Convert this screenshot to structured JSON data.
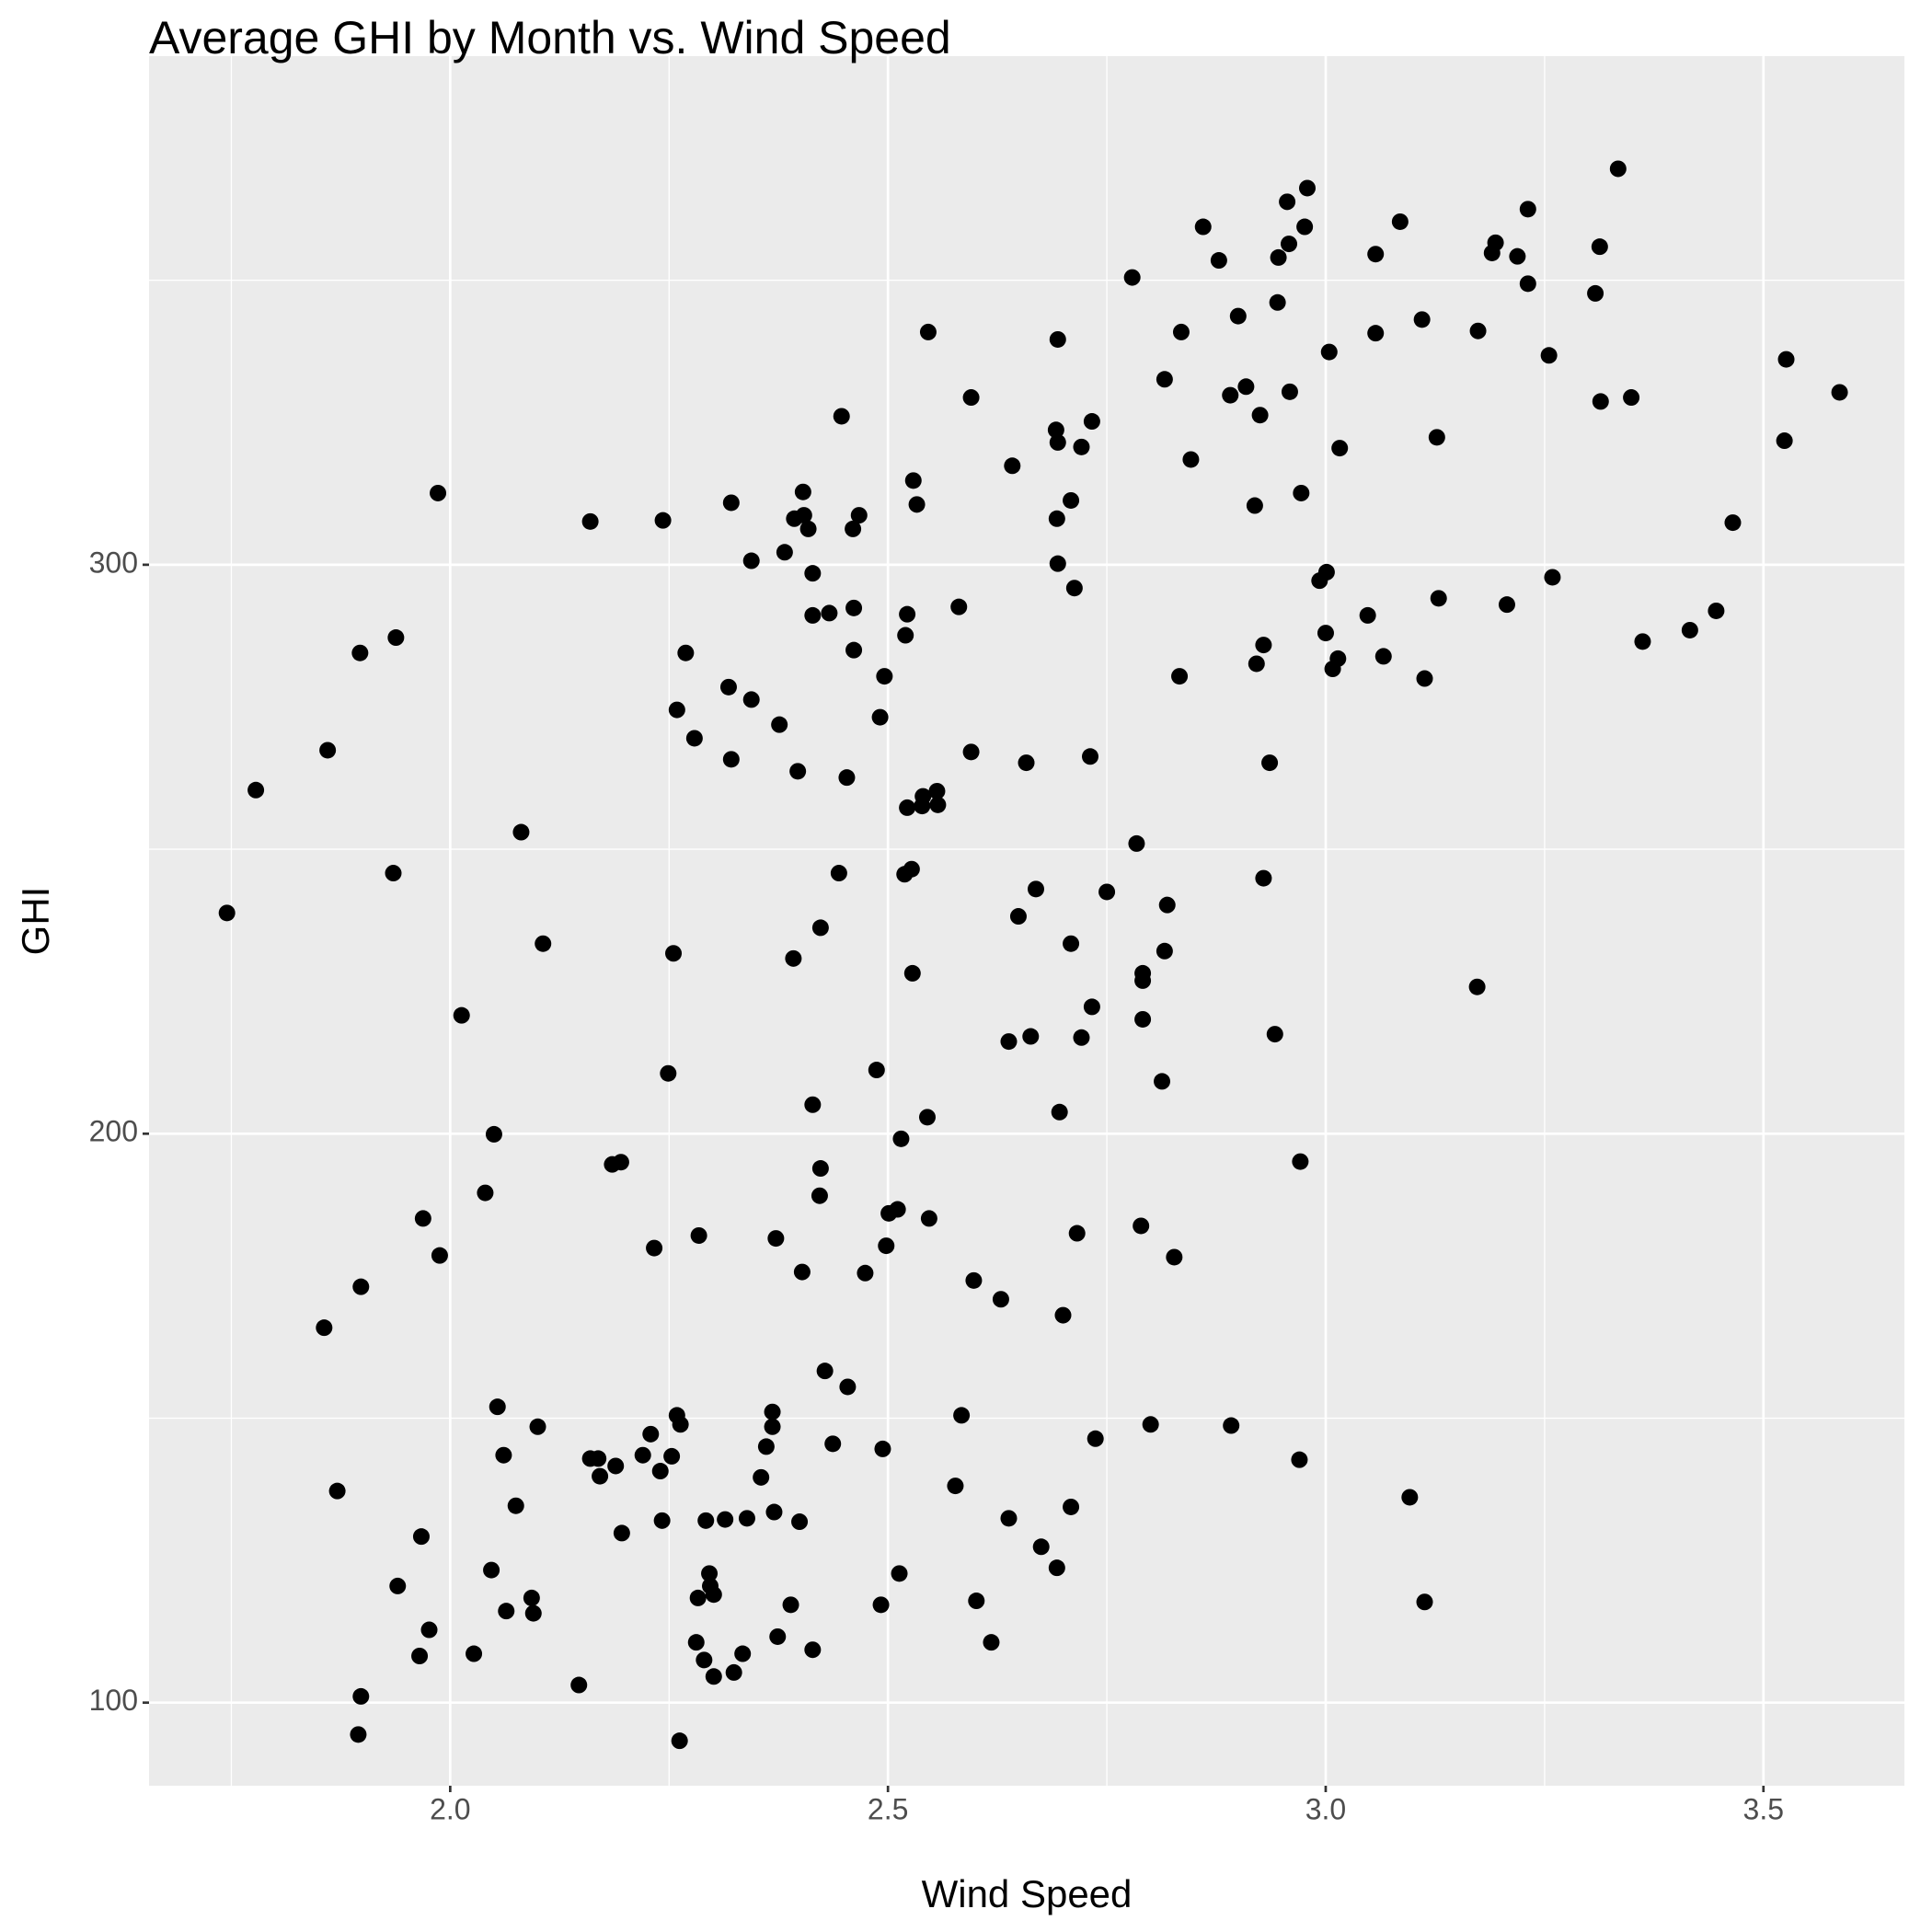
{
  "chart_data": {
    "type": "scatter",
    "title": "Average GHI by Month vs. Wind Speed",
    "x_label": "Wind Speed",
    "y_label": "GHI",
    "color": "#000000",
    "grid": true,
    "xlim": [
      1.656,
      3.661
    ],
    "ylim": [
      85.4,
      389.4
    ],
    "xticks": [
      {
        "value": 2,
        "label": "2.0"
      },
      {
        "value": 2.5,
        "label": "2.5"
      },
      {
        "value": 3,
        "label": "3.0"
      },
      {
        "value": 3.5,
        "label": "3.5"
      }
    ],
    "yticks": [
      100,
      200,
      300
    ],
    "xminor": [
      1.75,
      2.25,
      2.75,
      3.25
    ],
    "yminor": [
      150,
      250,
      350
    ],
    "x": [
      3.334,
      2.979,
      2.956,
      3.231,
      3.085,
      2.86,
      2.976,
      3.194,
      2.958,
      3.313,
      3.057,
      3.19,
      2.946,
      3.219,
      2.878,
      2.779,
      3.231,
      3.308,
      2.945,
      2.9,
      3.11,
      2.546,
      2.835,
      3.057,
      3.174,
      2.694,
      3.004,
      3.255,
      3.526,
      2.816,
      2.909,
      2.891,
      2.959,
      3.587,
      2.595,
      3.314,
      3.349,
      2.447,
      2.925,
      2.733,
      2.692,
      2.694,
      2.721,
      3.127,
      3.524,
      3.016,
      2.642,
      2.846,
      2.529,
      1.986,
      2.403,
      2.972,
      2.321,
      2.533,
      2.709,
      2.919,
      2.16,
      2.243,
      2.393,
      2.404,
      2.467,
      2.693,
      2.409,
      2.46,
      3.465,
      2.382,
      2.344,
      2.694,
      2.414,
      3.001,
      2.993,
      3.259,
      2.713,
      3.129,
      2.414,
      2.433,
      2.461,
      2.522,
      2.581,
      3.048,
      3.207,
      3.446,
      2.52,
      3.0,
      3.416,
      1.938,
      2.929,
      3.362,
      1.897,
      2.269,
      2.461,
      3.014,
      3.066,
      2.921,
      3.008,
      2.496,
      2.833,
      3.113,
      2.318,
      2.344,
      2.259,
      2.491,
      2.376,
      2.279,
      1.86,
      2.595,
      2.321,
      2.731,
      2.658,
      2.936,
      2.397,
      2.453,
      1.778,
      2.54,
      2.556,
      2.522,
      2.539,
      2.557,
      2.081,
      2.784,
      1.935,
      2.444,
      2.527,
      2.519,
      2.929,
      2.669,
      2.75,
      2.819,
      1.745,
      2.649,
      2.423,
      2.106,
      2.709,
      2.255,
      2.816,
      2.392,
      2.528,
      2.791,
      2.791,
      3.173,
      2.733,
      2.013,
      2.791,
      2.942,
      2.663,
      2.721,
      2.638,
      2.487,
      2.249,
      2.813,
      2.414,
      2.696,
      2.545,
      2.05,
      2.515,
      2.971,
      2.185,
      2.195,
      2.423,
      2.04,
      2.422,
      2.511,
      2.501,
      1.969,
      2.547,
      2.789,
      2.284,
      2.372,
      2.716,
      2.498,
      2.233,
      1.988,
      2.827,
      2.402,
      2.474,
      2.598,
      1.898,
      2.629,
      2.7,
      1.856,
      2.428,
      2.454,
      2.054,
      2.259,
      2.368,
      2.584,
      2.263,
      2.1,
      2.368,
      2.8,
      2.892,
      2.229,
      2.737,
      2.437,
      2.361,
      2.494,
      2.061,
      2.22,
      2.16,
      2.169,
      2.253,
      2.97,
      2.189,
      2.24,
      2.171,
      2.355,
      1.871,
      2.577,
      3.096,
      2.075,
      2.709,
      2.37,
      2.292,
      2.314,
      2.339,
      2.242,
      2.399,
      2.638,
      2.196,
      1.967,
      2.675,
      2.693,
      2.047,
      2.513,
      2.296,
      1.94,
      2.297,
      2.301,
      2.283,
      2.093,
      2.601,
      3.113,
      2.492,
      2.389,
      2.064,
      2.095,
      1.976,
      2.374,
      2.281,
      2.618,
      2.414,
      2.027,
      1.965,
      2.334,
      2.29,
      2.324,
      2.301,
      2.147,
      1.898,
      1.895,
      2.262
    ],
    "values": [
      369.6,
      366.2,
      363.8,
      362.5,
      360.3,
      359.4,
      359.4,
      356.6,
      356.4,
      355.9,
      354.6,
      354.8,
      354.0,
      354.2,
      353.5,
      350.5,
      349.4,
      347.7,
      346.1,
      343.7,
      343.1,
      340.9,
      340.9,
      340.7,
      341.1,
      339.6,
      337.4,
      336.8,
      336.1,
      332.6,
      331.3,
      329.8,
      330.4,
      330.3,
      329.4,
      328.7,
      329.4,
      326.1,
      326.3,
      325.2,
      323.7,
      321.5,
      320.7,
      322.4,
      321.8,
      320.5,
      317.4,
      318.5,
      314.8,
      312.6,
      312.8,
      312.6,
      310.9,
      310.6,
      311.3,
      310.4,
      307.6,
      307.8,
      308.1,
      308.7,
      308.7,
      308.1,
      306.3,
      306.3,
      307.4,
      302.2,
      300.7,
      300.2,
      298.5,
      298.7,
      297.2,
      297.8,
      295.9,
      294.1,
      291.1,
      291.5,
      292.4,
      291.3,
      292.6,
      291.1,
      293.0,
      291.9,
      287.6,
      288.0,
      288.5,
      287.2,
      285.9,
      286.5,
      284.5,
      284.5,
      285.0,
      283.5,
      283.9,
      282.6,
      281.7,
      280.4,
      280.4,
      280.0,
      278.5,
      276.3,
      274.5,
      273.2,
      271.9,
      269.5,
      267.4,
      267.1,
      265.8,
      266.3,
      265.2,
      265.2,
      263.7,
      262.6,
      260.4,
      259.3,
      260.2,
      257.3,
      257.6,
      257.8,
      253.0,
      251.0,
      245.8,
      245.8,
      246.5,
      245.6,
      244.9,
      243.0,
      242.5,
      240.2,
      238.8,
      238.2,
      236.2,
      233.4,
      233.4,
      231.7,
      232.1,
      230.8,
      228.2,
      228.2,
      226.9,
      225.8,
      222.3,
      220.8,
      220.1,
      217.5,
      217.1,
      216.9,
      216.2,
      211.2,
      210.6,
      209.2,
      205.1,
      203.8,
      202.9,
      199.9,
      199.1,
      195.1,
      194.6,
      195.0,
      193.9,
      189.6,
      189.1,
      186.7,
      186.0,
      185.1,
      185.1,
      183.8,
      182.1,
      181.6,
      182.5,
      180.3,
      179.9,
      178.6,
      178.3,
      175.7,
      175.5,
      174.2,
      173.1,
      170.9,
      168.1,
      165.9,
      158.3,
      155.5,
      152.0,
      150.5,
      151.1,
      150.5,
      148.9,
      148.5,
      148.5,
      148.9,
      148.7,
      147.2,
      146.4,
      145.5,
      145.0,
      144.6,
      143.5,
      143.5,
      142.9,
      142.9,
      143.3,
      142.7,
      141.6,
      140.7,
      139.8,
      139.6,
      137.2,
      138.1,
      136.1,
      134.6,
      134.4,
      133.5,
      132.0,
      132.2,
      132.4,
      132.0,
      131.8,
      132.4,
      129.8,
      129.2,
      127.4,
      123.7,
      123.3,
      122.7,
      122.7,
      120.5,
      120.5,
      119.0,
      118.4,
      118.4,
      117.9,
      117.7,
      117.2,
      117.2,
      116.1,
      115.7,
      112.8,
      111.6,
      110.6,
      110.6,
      109.3,
      108.6,
      108.2,
      108.6,
      107.5,
      105.3,
      104.6,
      103.1,
      101.1,
      94.4,
      93.3
    ]
  }
}
